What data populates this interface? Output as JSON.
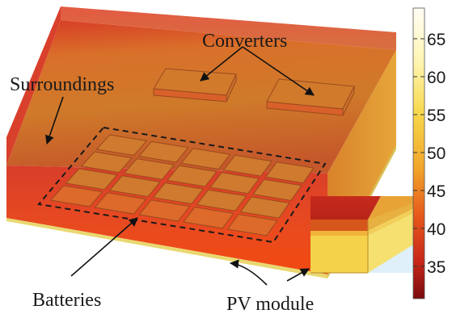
{
  "labels": {
    "converters": "Converters",
    "surroundings": "Surroundings",
    "batteries": "Batteries",
    "pv_module": "PV module"
  },
  "colorbar": {
    "ticks": [
      "65",
      "60",
      "55",
      "50",
      "45",
      "40",
      "35"
    ],
    "colors": [
      "#fffdf2",
      "#fff6b0",
      "#f6d84a",
      "#f2a52a",
      "#e55a18",
      "#c8261a",
      "#8b0d10"
    ]
  }
}
